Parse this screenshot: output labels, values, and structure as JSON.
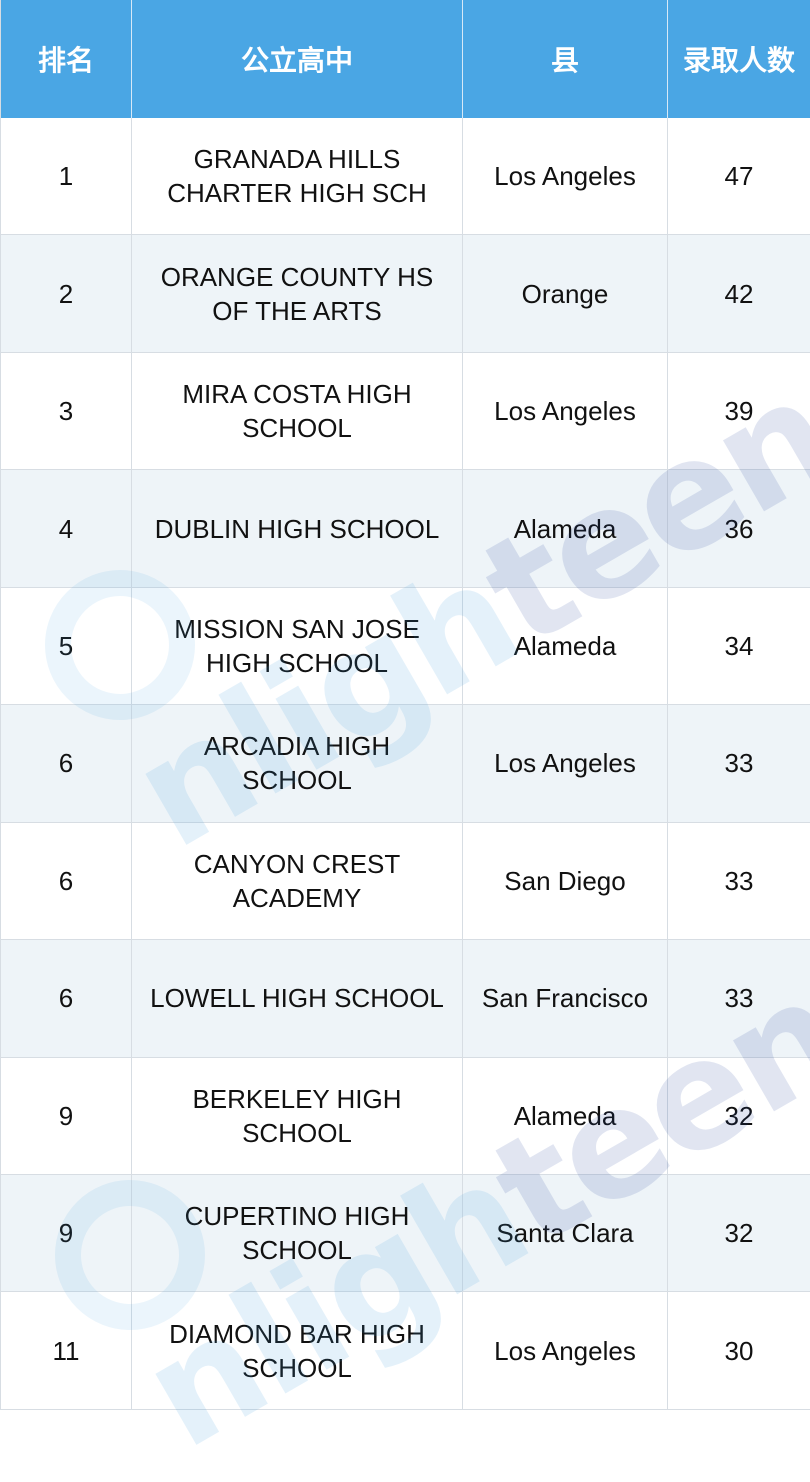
{
  "table": {
    "headers": [
      "排名",
      "公立高中",
      "县",
      "录取人数"
    ],
    "rows": [
      {
        "rank": "1",
        "school": "GRANADA HILLS CHARTER HIGH SCH",
        "county": "Los Angeles",
        "count": "47"
      },
      {
        "rank": "2",
        "school": "ORANGE COUNTY HS OF THE ARTS",
        "county": "Orange",
        "count": "42"
      },
      {
        "rank": "3",
        "school": "MIRA COSTA HIGH SCHOOL",
        "county": "Los Angeles",
        "count": "39"
      },
      {
        "rank": "4",
        "school": "DUBLIN HIGH SCHOOL",
        "county": "Alameda",
        "count": "36"
      },
      {
        "rank": "5",
        "school": "MISSION SAN JOSE HIGH SCHOOL",
        "county": "Alameda",
        "count": "34"
      },
      {
        "rank": "6",
        "school": "ARCADIA HIGH SCHOOL",
        "county": "Los Angeles",
        "count": "33"
      },
      {
        "rank": "6",
        "school": "CANYON CREST ACADEMY",
        "county": "San Diego",
        "count": "33"
      },
      {
        "rank": "6",
        "school": "LOWELL HIGH SCHOOL",
        "county": "San Francisco",
        "count": "33"
      },
      {
        "rank": "9",
        "school": "BERKELEY HIGH SCHOOL",
        "county": "Alameda",
        "count": "32"
      },
      {
        "rank": "9",
        "school": "CUPERTINO HIGH SCHOOL",
        "county": "Santa Clara",
        "count": "32"
      },
      {
        "rank": "11",
        "school": "DIAMOND BAR HIGH SCHOOL",
        "county": "Los Angeles",
        "count": "30"
      }
    ]
  },
  "watermark": {
    "part1": "nligh",
    "part2": "teens",
    "color_light": "#3a9be0",
    "color_dark": "#1f3f9a"
  },
  "colors": {
    "header_bg": "#4aa6e4",
    "row_alt_bg": "#eef4f8"
  }
}
